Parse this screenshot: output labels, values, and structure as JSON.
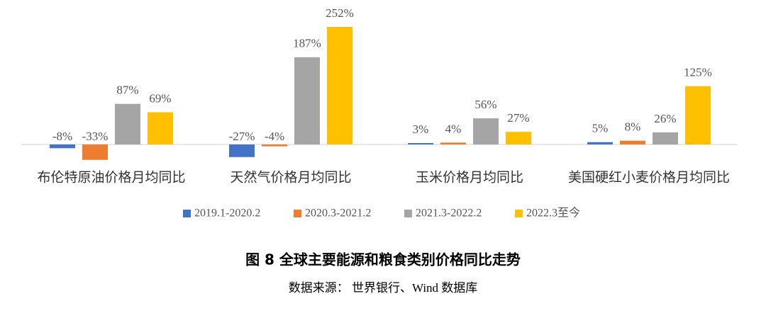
{
  "chart_data": {
    "type": "bar",
    "title": "图 8 全球主要能源和粮食类别价格同比走势",
    "source": "数据来源： 世界银行、Wind 数据库",
    "categories": [
      "布伦特原油价格月均同比",
      "天然气价格月均同比",
      "玉米价格月均同比",
      "美国硬红小麦价格月均同比"
    ],
    "series": [
      {
        "name": "2019.1-2020.2",
        "color": "#4472c4",
        "values": [
          -8,
          -27,
          3,
          5
        ],
        "value_labels": [
          "-8%",
          "-27%",
          "3%",
          "5%"
        ]
      },
      {
        "name": "2020.3-2021.2",
        "color": "#ed7d31",
        "values": [
          -33,
          -4,
          4,
          8
        ],
        "value_labels": [
          "-33%",
          "-4%",
          "4%",
          "8%"
        ]
      },
      {
        "name": "2021.3-2022.2",
        "color": "#a5a5a5",
        "values": [
          87,
          187,
          56,
          26
        ],
        "value_labels": [
          "87%",
          "187%",
          "56%",
          "26%"
        ]
      },
      {
        "name": "2022.3至今",
        "color": "#ffc000",
        "values": [
          69,
          252,
          27,
          125
        ],
        "value_labels": [
          "69%",
          "252%",
          "27%",
          "125%"
        ]
      }
    ],
    "legend": "bottom"
  }
}
